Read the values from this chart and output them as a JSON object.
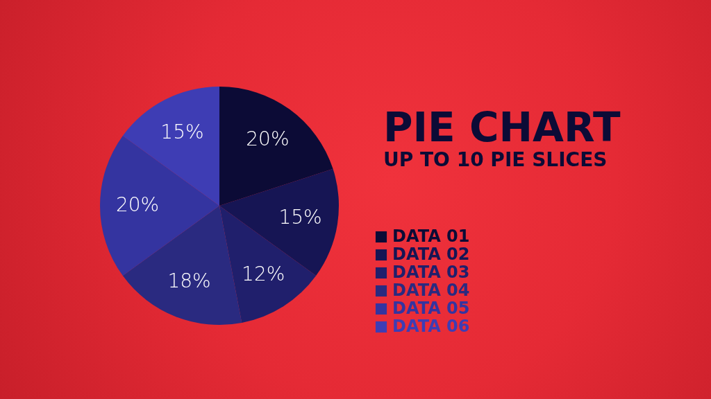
{
  "chart_data": {
    "type": "pie",
    "title": "PIE CHART",
    "subtitle": "UP TO 10 PIE SLICES",
    "categories": [
      "DATA 01",
      "DATA 02",
      "DATA 03",
      "DATA 04",
      "DATA 05",
      "DATA 06"
    ],
    "values": [
      20,
      15,
      12,
      18,
      20,
      15
    ],
    "value_labels": [
      "20%",
      "15%",
      "12%",
      "18%",
      "20%",
      "15%"
    ],
    "colors": [
      "#0c0b36",
      "#161554",
      "#201f6c",
      "#2a2a80",
      "#3434a0",
      "#3e3db4"
    ],
    "legend": "right"
  }
}
